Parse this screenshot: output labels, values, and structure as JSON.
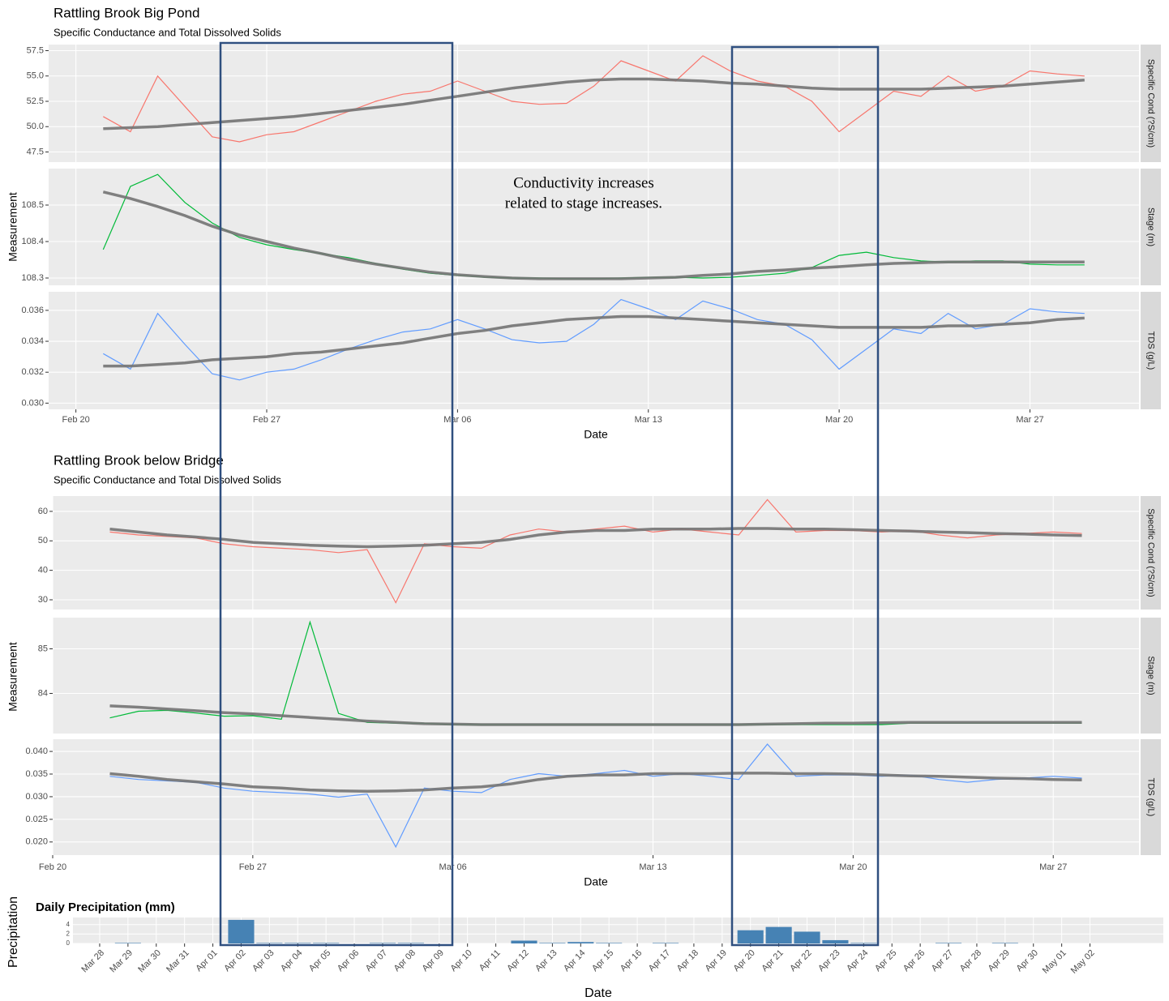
{
  "annotation": [
    "Conductivity increases",
    "related to stage increases."
  ],
  "chart_data": [
    {
      "type": "line",
      "title": "Rattling Brook Big Pond",
      "subtitle": "Specific Conductance and Total Dissolved Solids",
      "x_label": "Date",
      "y_label": "Measurement",
      "trend_color": "#737373",
      "x": [
        "Feb 21",
        "Feb 22",
        "Feb 23",
        "Feb 24",
        "Feb 25",
        "Feb 26",
        "Feb 27",
        "Feb 28",
        "Mar 01",
        "Mar 02",
        "Mar 03",
        "Mar 04",
        "Mar 05",
        "Mar 06",
        "Mar 07",
        "Mar 08",
        "Mar 09",
        "Mar 10",
        "Mar 11",
        "Mar 12",
        "Mar 13",
        "Mar 14",
        "Mar 15",
        "Mar 16",
        "Mar 17",
        "Mar 18",
        "Mar 19",
        "Mar 20",
        "Mar 21",
        "Mar 22",
        "Mar 23",
        "Mar 24",
        "Mar 25",
        "Mar 26",
        "Mar 27",
        "Mar 28",
        "Mar 29"
      ],
      "xlim": [
        "Feb 19",
        "Mar 31"
      ],
      "xticks": [
        "Feb 20",
        "Feb 27",
        "Mar 06",
        "Mar 13",
        "Mar 20",
        "Mar 27"
      ],
      "series": [
        {
          "name": "Specific Cond (?S/cm)",
          "color": "#f8766d",
          "ylim": [
            46.5,
            58.1
          ],
          "yticks": [
            47.5,
            {
              "value": 50,
              "label": "50.0"
            },
            52.5,
            {
              "value": 55,
              "label": "55.0"
            },
            57.5
          ],
          "values": [
            51,
            49.5,
            55,
            52,
            49,
            48.5,
            49.2,
            49.5,
            50.5,
            51.5,
            52.5,
            53.2,
            53.5,
            54.5,
            53.5,
            52.5,
            52.2,
            52.3,
            54,
            56.5,
            55.5,
            54.5,
            57,
            55.5,
            54.5,
            54,
            52.5,
            49.5,
            51.5,
            53.5,
            53,
            55,
            53.5,
            54,
            55.5,
            55.2,
            55
          ],
          "trend": [
            49.8,
            49.9,
            50,
            50.2,
            50.4,
            50.6,
            50.8,
            51,
            51.3,
            51.6,
            51.9,
            52.2,
            52.6,
            53,
            53.4,
            53.8,
            54.1,
            54.4,
            54.6,
            54.7,
            54.7,
            54.6,
            54.5,
            54.3,
            54.2,
            54,
            53.8,
            53.7,
            53.7,
            53.7,
            53.7,
            53.8,
            53.9,
            54,
            54.2,
            54.4,
            54.6
          ]
        },
        {
          "name": "Stage (m)",
          "color": "#00ba38",
          "ylim": [
            108.28,
            108.6
          ],
          "yticks": [
            108.3,
            108.4,
            108.5
          ],
          "values": [
            108.378,
            108.551,
            108.584,
            108.507,
            108.451,
            108.411,
            108.391,
            108.378,
            108.367,
            108.356,
            108.34,
            108.324,
            108.313,
            108.307,
            108.302,
            108.3,
            108.3,
            108.298,
            108.298,
            108.3,
            108.302,
            108.302,
            108.3,
            108.302,
            108.307,
            108.313,
            108.329,
            108.362,
            108.371,
            108.356,
            108.347,
            108.344,
            108.347,
            108.347,
            108.338,
            108.336,
            108.336
          ],
          "trend": [
            108.536,
            108.518,
            108.496,
            108.471,
            108.442,
            108.418,
            108.4,
            108.382,
            108.367,
            108.351,
            108.338,
            108.327,
            108.316,
            108.309,
            108.304,
            108.3,
            108.298,
            108.298,
            108.298,
            108.298,
            108.3,
            108.302,
            108.307,
            108.311,
            108.318,
            108.322,
            108.327,
            108.331,
            108.336,
            108.34,
            108.342,
            108.344,
            108.344,
            108.344,
            108.344,
            108.344,
            108.344
          ]
        },
        {
          "name": "TDS (g/L)",
          "color": "#619cff",
          "ylim": [
            0.0296,
            0.0372
          ],
          "yticks": [
            {
              "value": 0.03,
              "label": "0.030"
            },
            0.032,
            0.034,
            0.036
          ],
          "values": [
            0.0332,
            0.0322,
            0.0358,
            0.0338,
            0.0319,
            0.0315,
            0.032,
            0.0322,
            0.0328,
            0.0335,
            0.0341,
            0.0346,
            0.0348,
            0.0354,
            0.0348,
            0.0341,
            0.0339,
            0.034,
            0.0351,
            0.0367,
            0.0361,
            0.0354,
            0.0366,
            0.0361,
            0.0354,
            0.0351,
            0.0341,
            0.0322,
            0.0335,
            0.0348,
            0.0345,
            0.0358,
            0.0348,
            0.0351,
            0.0361,
            0.0359,
            0.0358
          ],
          "trend": [
            0.0324,
            0.0324,
            0.0325,
            0.0326,
            0.0328,
            0.0329,
            0.033,
            0.0332,
            0.0333,
            0.0335,
            0.0337,
            0.0339,
            0.0342,
            0.0345,
            0.0347,
            0.035,
            0.0352,
            0.0354,
            0.0355,
            0.0356,
            0.0356,
            0.0355,
            0.0354,
            0.0353,
            0.0352,
            0.0351,
            0.035,
            0.0349,
            0.0349,
            0.0349,
            0.0349,
            0.035,
            0.035,
            0.0351,
            0.0352,
            0.0354,
            0.0355
          ]
        }
      ]
    },
    {
      "type": "line",
      "title": "Rattling Brook below Bridge",
      "subtitle": "Specific Conductance and Total Dissolved Solids",
      "x_label": "Date",
      "y_label": "Measurement",
      "trend_color": "#737373",
      "x": [
        "Feb 22",
        "Feb 23",
        "Feb 24",
        "Feb 25",
        "Feb 26",
        "Feb 27",
        "Feb 28",
        "Mar 01",
        "Mar 02",
        "Mar 03",
        "Mar 04",
        "Mar 05",
        "Mar 06",
        "Mar 07",
        "Mar 08",
        "Mar 09",
        "Mar 10",
        "Mar 11",
        "Mar 12",
        "Mar 13",
        "Mar 14",
        "Mar 15",
        "Mar 16",
        "Mar 17",
        "Mar 18",
        "Mar 19",
        "Mar 20",
        "Mar 21",
        "Mar 22",
        "Mar 23",
        "Mar 24",
        "Mar 25",
        "Mar 26",
        "Mar 27",
        "Mar 28"
      ],
      "xlim": [
        "Feb 20",
        "Mar 30"
      ],
      "xticks": [
        "Feb 20",
        "Feb 27",
        "Mar 06",
        "Mar 13",
        "Mar 20",
        "Mar 27"
      ],
      "series": [
        {
          "name": "Specific Cond (?S/cm)",
          "color": "#f8766d",
          "ylim": [
            26.7,
            65.2
          ],
          "yticks": [
            30,
            40,
            50,
            60
          ],
          "values": [
            53,
            52,
            51.5,
            51,
            49,
            48,
            47.5,
            47,
            46,
            47,
            29,
            49,
            48,
            47.5,
            52,
            54,
            53,
            54,
            55,
            53,
            54,
            53,
            52,
            64,
            53,
            53.5,
            53.5,
            53,
            53.5,
            52,
            51,
            52,
            52.5,
            53,
            52.5
          ],
          "trend": [
            54,
            53,
            52,
            51.3,
            50.5,
            49.5,
            49,
            48.5,
            48.2,
            48,
            48.2,
            48.5,
            49,
            49.5,
            50.5,
            52,
            53,
            53.5,
            53.5,
            54,
            54,
            54,
            54.2,
            54.2,
            54,
            54,
            53.8,
            53.5,
            53.3,
            53,
            52.8,
            52.5,
            52.3,
            52,
            51.8
          ]
        },
        {
          "name": "Stage (m)",
          "color": "#00ba38",
          "ylim": [
            83.1,
            85.7
          ],
          "yticks": [
            84,
            85
          ],
          "values": [
            83.45,
            83.6,
            83.62,
            83.56,
            83.49,
            83.5,
            83.42,
            85.6,
            83.55,
            83.35,
            83.33,
            83.33,
            83.3,
            83.3,
            83.3,
            83.3,
            83.3,
            83.3,
            83.3,
            83.3,
            83.3,
            83.3,
            83.3,
            83.3,
            83.3,
            83.3,
            83.3,
            83.3,
            83.33,
            83.33,
            83.33,
            83.33,
            83.33,
            83.33,
            83.33
          ],
          "trend": [
            83.72,
            83.69,
            83.65,
            83.61,
            83.57,
            83.54,
            83.5,
            83.46,
            83.42,
            83.38,
            83.35,
            83.32,
            83.31,
            83.3,
            83.3,
            83.3,
            83.3,
            83.3,
            83.3,
            83.3,
            83.3,
            83.3,
            83.3,
            83.31,
            83.32,
            83.33,
            83.33,
            83.34,
            83.35,
            83.35,
            83.35,
            83.35,
            83.35,
            83.35,
            83.35
          ]
        },
        {
          "name": "TDS (g/L)",
          "color": "#619cff",
          "ylim": [
            0.0171,
            0.0427
          ],
          "yticks": [
            {
              "value": 0.02,
              "label": "0.020"
            },
            0.025,
            {
              "value": 0.03,
              "label": "0.030"
            },
            0.035,
            {
              "value": 0.04,
              "label": "0.040"
            }
          ],
          "values": [
            0.0345,
            0.0338,
            0.0335,
            0.0332,
            0.0319,
            0.0312,
            0.0309,
            0.0306,
            0.0299,
            0.0306,
            0.0189,
            0.0319,
            0.0312,
            0.0309,
            0.0338,
            0.0351,
            0.0345,
            0.0351,
            0.0358,
            0.0345,
            0.0351,
            0.0345,
            0.0338,
            0.0416,
            0.0345,
            0.0348,
            0.0348,
            0.0345,
            0.0348,
            0.0338,
            0.0332,
            0.0338,
            0.0341,
            0.0345,
            0.0341
          ],
          "trend": [
            0.0351,
            0.0345,
            0.0338,
            0.0333,
            0.0328,
            0.0322,
            0.0319,
            0.0315,
            0.0313,
            0.0312,
            0.0313,
            0.0315,
            0.0319,
            0.0322,
            0.0328,
            0.0338,
            0.0345,
            0.0348,
            0.0348,
            0.0351,
            0.0351,
            0.0351,
            0.0352,
            0.0352,
            0.0351,
            0.0351,
            0.035,
            0.0348,
            0.0346,
            0.0345,
            0.0343,
            0.0341,
            0.034,
            0.0338,
            0.0337
          ]
        }
      ]
    },
    {
      "type": "bar",
      "title": "Daily Precipitation (mm)",
      "x_label": "Date",
      "y_label": "Precipitation",
      "color": "#4682b4",
      "categories": [
        "Mar 28",
        "Mar 29",
        "Mar 30",
        "Mar 31",
        "Apr 01",
        "Apr 02",
        "Apr 03",
        "Apr 04",
        "Apr 05",
        "Apr 06",
        "Apr 07",
        "Apr 08",
        "Apr 09",
        "Apr 10",
        "Apr 11",
        "Apr 12",
        "Apr 13",
        "Apr 14",
        "Apr 15",
        "Apr 16",
        "Apr 17",
        "Apr 18",
        "Apr 19",
        "Apr 20",
        "Apr 21",
        "Apr 22",
        "Apr 23",
        "Apr 24",
        "Apr 25",
        "Apr 26",
        "Apr 27",
        "Apr 28",
        "Apr 29",
        "Apr 30",
        "May 01",
        "May 02"
      ],
      "values": [
        0,
        0.1,
        0,
        0,
        0,
        5,
        0.1,
        0.1,
        0.1,
        0,
        0.1,
        0.1,
        0,
        0,
        0,
        0.6,
        0.1,
        0.3,
        0.1,
        0,
        0.1,
        0,
        0,
        2.8,
        3.5,
        2.5,
        0.7,
        0.1,
        0,
        0,
        0.1,
        0,
        0.1,
        0,
        0,
        0
      ],
      "ylim": [
        0,
        5.5
      ],
      "yticks": [
        0,
        2,
        4
      ]
    }
  ]
}
